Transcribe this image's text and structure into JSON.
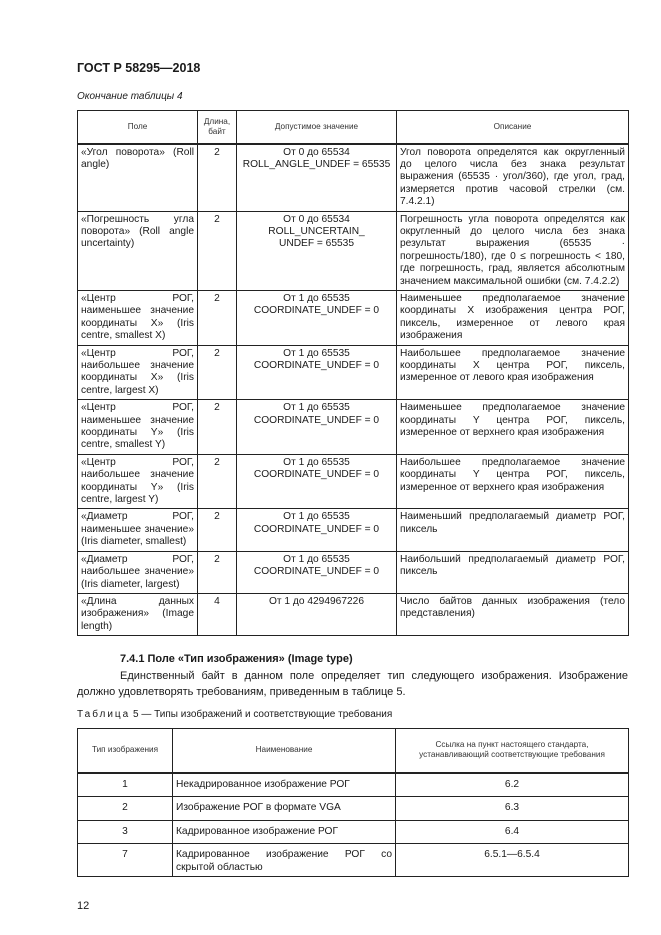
{
  "header": {
    "doc_title": "ГОСТ Р 58295—2018"
  },
  "table4": {
    "continuation": "Окончание таблицы 4",
    "columns": [
      "Поле",
      "Длина, байт",
      "Допустимое значение",
      "Описание"
    ],
    "rows": [
      {
        "field": "«Угол поворота» (Roll angle)",
        "length": "2",
        "value": "От 0 до 65534\nROLL_ANGLE_UNDEF = 65535",
        "desc": "Угол поворота определятся как округленный до целого числа без знака результат выражения (65535 · угол/360), где угол, град, измеряется против часовой стрелки (см. 7.4.2.1)"
      },
      {
        "field": "«Погрешность угла поворота» (Roll angle uncertainty)",
        "length": "2",
        "value": "От 0 до 65534\nROLL_UNCERTAIN_\nUNDEF = 65535",
        "desc": "Погрешность угла поворота определятся как округленный до целого числа без знака результат выражения (65535 · погрешность/180), где 0 ≤ погрешность < 180, где погрешность, град, является абсолютным значением максимальной ошибки (см. 7.4.2.2)"
      },
      {
        "field": "«Центр РОГ, наименьшее значение координаты X» (Iris centre, smallest X)",
        "length": "2",
        "value": "От 1 до 65535\nCOORDINATE_UNDEF = 0",
        "desc": "Наименьшее предполагаемое значение координаты X изображения центра РОГ, пиксель, измеренное от левого края изображения"
      },
      {
        "field": "«Центр РОГ, наибольшее значение координаты X» (Iris centre, largest X)",
        "length": "2",
        "value": "От 1 до 65535\nCOORDINATE_UNDEF = 0",
        "desc": "Наибольшее предполагаемое значение координаты X центра РОГ, пиксель, измеренное от левого края изображения"
      },
      {
        "field": "«Центр РОГ, наименьшее значение координаты Y» (Iris centre, smallest Y)",
        "length": "2",
        "value": "От 1 до 65535\nCOORDINATE_UNDEF = 0",
        "desc": "Наименьшее предполагаемое значение координаты Y центра РОГ, пиксель, измеренное от верхнего края изображения"
      },
      {
        "field": "«Центр РОГ, наибольшее значение координаты Y» (Iris centre, largest Y)",
        "length": "2",
        "value": "От 1 до 65535\nCOORDINATE_UNDEF = 0",
        "desc": "Наибольшее предполагаемое значение координаты Y центра РОГ, пиксель, измеренное от верхнего края изображения"
      },
      {
        "field": "«Диаметр РОГ, наименьшее значение» (Iris diameter, smallest)",
        "length": "2",
        "value": "От 1 до 65535\nCOORDINATE_UNDEF = 0",
        "desc": "Наименьший предполагаемый диаметр РОГ, пиксель"
      },
      {
        "field": "«Диаметр РОГ, наибольшее значение» (Iris diameter, largest)",
        "length": "2",
        "value": "От 1 до 65535\nCOORDINATE_UNDEF = 0",
        "desc": "Наибольший предполагаемый диаметр РОГ, пиксель"
      },
      {
        "field": "«Длина данных изображения» (Image length)",
        "length": "4",
        "value": "От 1 до 4294967226",
        "desc": "Число байтов данных изображения (тело представления)"
      }
    ]
  },
  "section": {
    "heading": "7.4.1 Поле «Тип изображения» (Image type)",
    "paragraph": "Единственный байт в данном поле определяет тип следующего изображения. Изображение должно удовлетворять требованиям, приведенным в таблице 5."
  },
  "table5": {
    "caption_prefix": "Таблица",
    "caption_rest": "5 — Типы изображений и соответствующие требования",
    "columns": [
      "Тип изображения",
      "Наименование",
      "Ссылка на пункт настоящего стандарта, устанавливающий соответствующие требования"
    ],
    "rows": [
      {
        "type": "1",
        "name": "Некадрированное изображение РОГ",
        "ref": "6.2"
      },
      {
        "type": "2",
        "name": "Изображение РОГ в формате VGA",
        "ref": "6.3"
      },
      {
        "type": "3",
        "name": "Кадрированное изображение РОГ",
        "ref": "6.4"
      },
      {
        "type": "7",
        "name": "Кадрированное изображение РОГ со скрытой областью",
        "ref": "6.5.1—6.5.4"
      }
    ]
  },
  "footer": {
    "page_number": "12"
  }
}
